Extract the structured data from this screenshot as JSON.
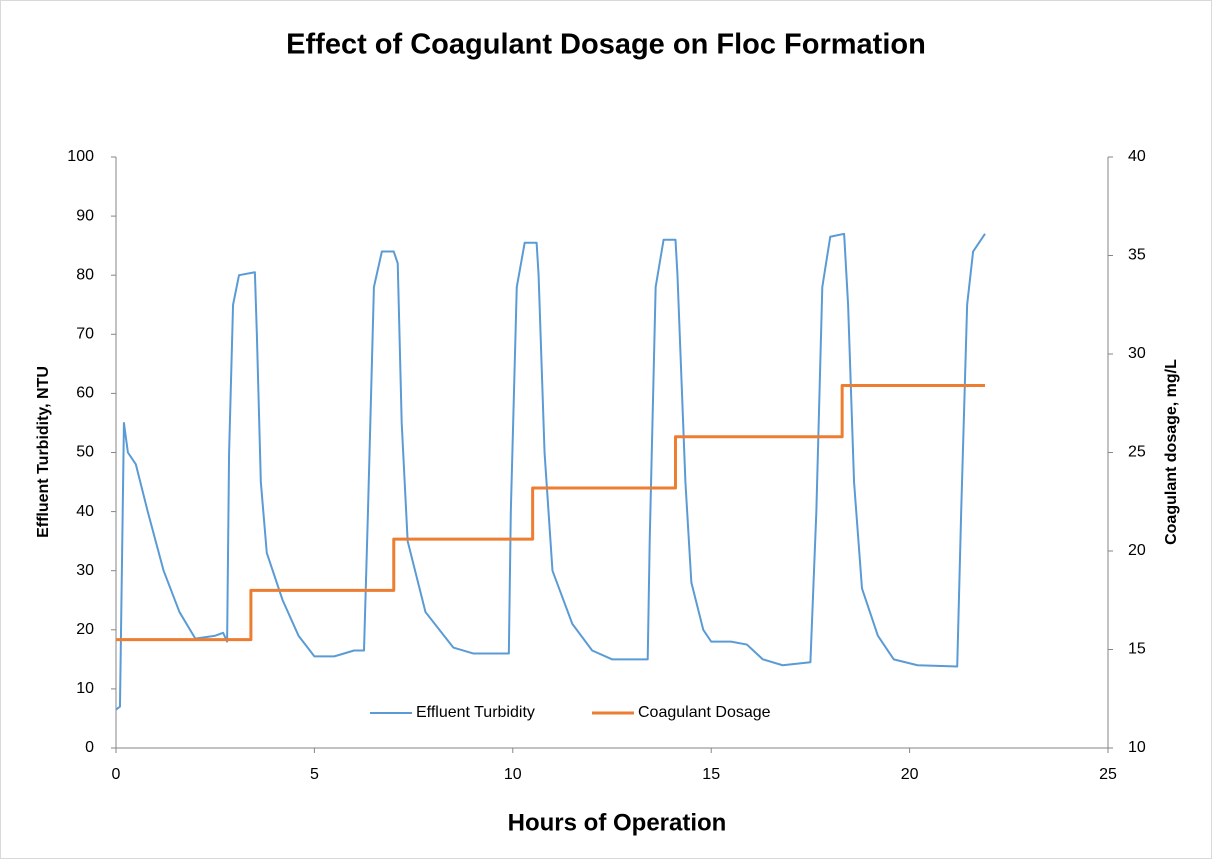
{
  "chart_data": {
    "type": "line",
    "title": "Effect of Coagulant Dosage on Floc Formation",
    "x_label": "Hours of Operation",
    "y_label": "Effluent Turbidity, NTU",
    "y2_label": "Coagulant dosage, mg/L",
    "xlim": [
      0,
      25
    ],
    "xticks": [
      0,
      5,
      10,
      15,
      20,
      25
    ],
    "ylim": [
      0,
      100
    ],
    "yticks": [
      0,
      10,
      20,
      30,
      40,
      50,
      60,
      70,
      80,
      90,
      100
    ],
    "y2lim": [
      10,
      40
    ],
    "y2ticks": [
      10,
      15,
      20,
      25,
      30,
      35,
      40
    ],
    "legend": "bottom",
    "series": [
      {
        "name": "Effluent Turbidity",
        "color": "#5b9bd5",
        "x": [
          0,
          0.1,
          0.2,
          0.3,
          0.5,
          0.8,
          1.2,
          1.6,
          2.0,
          2.5,
          2.7,
          2.8,
          2.85,
          2.95,
          3.1,
          3.5,
          3.55,
          3.65,
          3.8,
          4.2,
          4.6,
          5.0,
          5.5,
          6.0,
          6.25,
          6.35,
          6.5,
          6.7,
          7.0,
          7.1,
          7.2,
          7.35,
          7.8,
          8.5,
          9.0,
          9.9,
          9.95,
          10.1,
          10.3,
          10.6,
          10.65,
          10.8,
          11.0,
          11.5,
          12.0,
          12.5,
          13.4,
          13.45,
          13.6,
          13.8,
          14.1,
          14.15,
          14.35,
          14.5,
          14.8,
          15.0,
          15.5,
          15.9,
          16.3,
          16.8,
          17.5,
          17.65,
          17.8,
          18.0,
          18.35,
          18.45,
          18.6,
          18.8,
          19.2,
          19.6,
          20.2,
          21.2,
          21.3,
          21.45,
          21.6,
          21.9
        ],
        "values": [
          6.5,
          7,
          55,
          50,
          48,
          40,
          30,
          23,
          18.5,
          19,
          19.5,
          18,
          50,
          75,
          80,
          80.5,
          70,
          45,
          33,
          25,
          19,
          15.5,
          15.5,
          16.5,
          16.5,
          40,
          78,
          84,
          84,
          82,
          55,
          35,
          23,
          17,
          16,
          16,
          40,
          78,
          85.5,
          85.5,
          80,
          50,
          30,
          21,
          16.5,
          15,
          15,
          35,
          78,
          86,
          86,
          80,
          45,
          28,
          20,
          18,
          18,
          17.5,
          15,
          14,
          14.5,
          40,
          78,
          86.5,
          87,
          75,
          45,
          27,
          19,
          15,
          14,
          13.8,
          40,
          75,
          84,
          87
        ]
      },
      {
        "name": "Coagulant Dosage",
        "color": "#ed7d31",
        "axis": "y2",
        "x": [
          0,
          3.4,
          3.4,
          7.0,
          7.0,
          10.5,
          10.5,
          14.1,
          14.1,
          18.3,
          18.3,
          21.9
        ],
        "values": [
          15.5,
          15.5,
          18,
          18,
          20.6,
          20.6,
          23.2,
          23.2,
          25.8,
          25.8,
          28.4,
          28.4
        ]
      }
    ]
  }
}
